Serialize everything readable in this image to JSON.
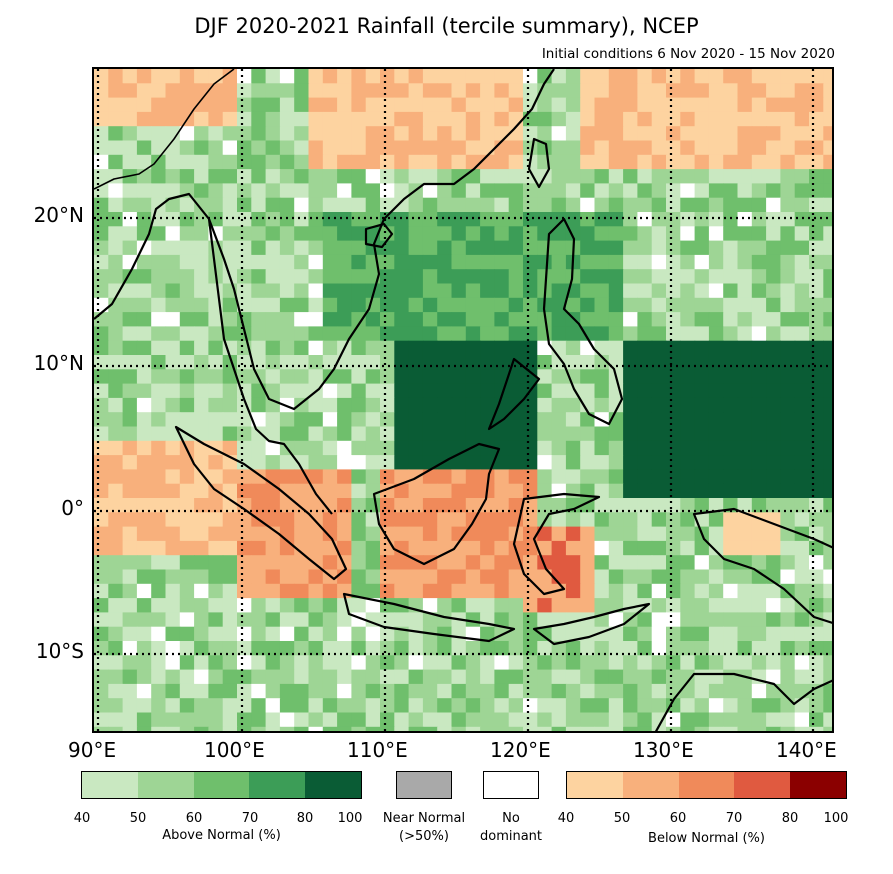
{
  "title": "DJF 2020-2021 Rainfall (tercile summary), NCEP",
  "subtitle": "Initial conditions 6 Nov 2020 - 15 Nov 2020",
  "lat_labels": [
    "20°N",
    "10°N",
    "0°",
    "10°S"
  ],
  "lon_labels": [
    "90°E",
    "100°E",
    "110°E",
    "120°E",
    "130°E",
    "140°E"
  ],
  "legend": {
    "above": {
      "caption": "Above Normal (%)",
      "ticks": [
        "40",
        "50",
        "60",
        "70",
        "80",
        "100"
      ],
      "colors": [
        "#c9e8c1",
        "#9ed595",
        "#6fbf6c",
        "#3c9d57",
        "#0a5c35"
      ]
    },
    "near": {
      "caption": "Near Normal",
      "caption2": "(>50%)",
      "color": "#a9a9a9"
    },
    "none": {
      "caption": "No",
      "caption2": "dominant",
      "color": "#ffffff"
    },
    "below": {
      "caption": "Below Normal (%)",
      "ticks": [
        "40",
        "50",
        "60",
        "70",
        "80",
        "100"
      ],
      "colors": [
        "#fdd3a0",
        "#f8b07c",
        "#f08a5a",
        "#e05a40",
        "#8b0000"
      ]
    }
  }
}
